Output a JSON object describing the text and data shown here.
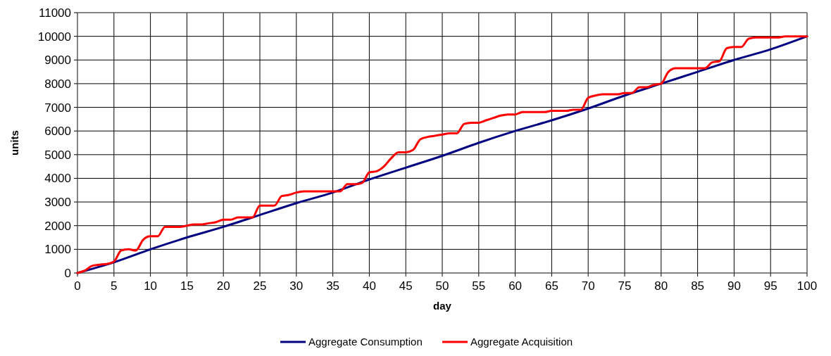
{
  "chart_data": {
    "type": "line",
    "xlabel": "day",
    "ylabel": "units",
    "xlim": [
      0,
      100
    ],
    "ylim": [
      0,
      11000
    ],
    "xticks": [
      0,
      5,
      10,
      15,
      20,
      25,
      30,
      35,
      40,
      45,
      50,
      55,
      60,
      65,
      70,
      75,
      80,
      85,
      90,
      95,
      100
    ],
    "yticks": [
      0,
      1000,
      2000,
      3000,
      4000,
      5000,
      6000,
      7000,
      8000,
      9000,
      10000,
      11000
    ],
    "grid": true,
    "legend": "bottom",
    "marker": "none",
    "line_style": "solid",
    "series": [
      {
        "name": "Aggregate Consumption",
        "color": "#000080",
        "x": [
          0,
          5,
          10,
          15,
          20,
          25,
          30,
          35,
          40,
          45,
          50,
          55,
          60,
          65,
          70,
          75,
          80,
          85,
          90,
          95,
          100
        ],
        "values": [
          0,
          450,
          1000,
          1500,
          1950,
          2450,
          2950,
          3400,
          3950,
          4450,
          4950,
          5500,
          6000,
          6450,
          6950,
          7500,
          8000,
          8500,
          9000,
          9450,
          10000
        ]
      },
      {
        "name": "Aggregate Acquisition",
        "color": "#ff0000",
        "x": [
          0,
          1,
          2,
          3,
          4,
          5,
          6,
          7,
          8,
          9,
          10,
          11,
          12,
          13,
          14,
          15,
          16,
          17,
          18,
          19,
          20,
          21,
          22,
          23,
          24,
          25,
          26,
          27,
          28,
          29,
          30,
          31,
          32,
          33,
          34,
          35,
          36,
          37,
          38,
          39,
          40,
          41,
          42,
          43,
          44,
          45,
          46,
          47,
          48,
          49,
          50,
          51,
          52,
          53,
          54,
          55,
          56,
          57,
          58,
          59,
          60,
          61,
          62,
          63,
          64,
          65,
          66,
          67,
          68,
          69,
          70,
          71,
          72,
          73,
          74,
          75,
          76,
          77,
          78,
          79,
          80,
          81,
          82,
          83,
          84,
          85,
          86,
          87,
          88,
          89,
          90,
          91,
          92,
          93,
          94,
          95,
          96,
          97,
          98,
          99,
          100
        ],
        "values": [
          0,
          100,
          300,
          350,
          380,
          480,
          950,
          1000,
          950,
          1400,
          1550,
          1550,
          1950,
          1950,
          1950,
          2000,
          2050,
          2050,
          2100,
          2150,
          2250,
          2250,
          2350,
          2350,
          2350,
          2850,
          2850,
          2850,
          3250,
          3300,
          3400,
          3450,
          3450,
          3450,
          3450,
          3450,
          3450,
          3750,
          3750,
          3800,
          4250,
          4300,
          4500,
          4850,
          5100,
          5100,
          5200,
          5650,
          5750,
          5800,
          5850,
          5900,
          5900,
          6300,
          6350,
          6350,
          6450,
          6550,
          6650,
          6700,
          6700,
          6800,
          6800,
          6800,
          6800,
          6850,
          6850,
          6850,
          6900,
          6900,
          7400,
          7500,
          7550,
          7550,
          7550,
          7600,
          7600,
          7850,
          7850,
          7950,
          8000,
          8500,
          8650,
          8650,
          8650,
          8650,
          8650,
          8900,
          8950,
          9500,
          9550,
          9550,
          9900,
          9950,
          9950,
          9950,
          9950,
          10000,
          10000,
          10000,
          10000
        ]
      }
    ]
  }
}
